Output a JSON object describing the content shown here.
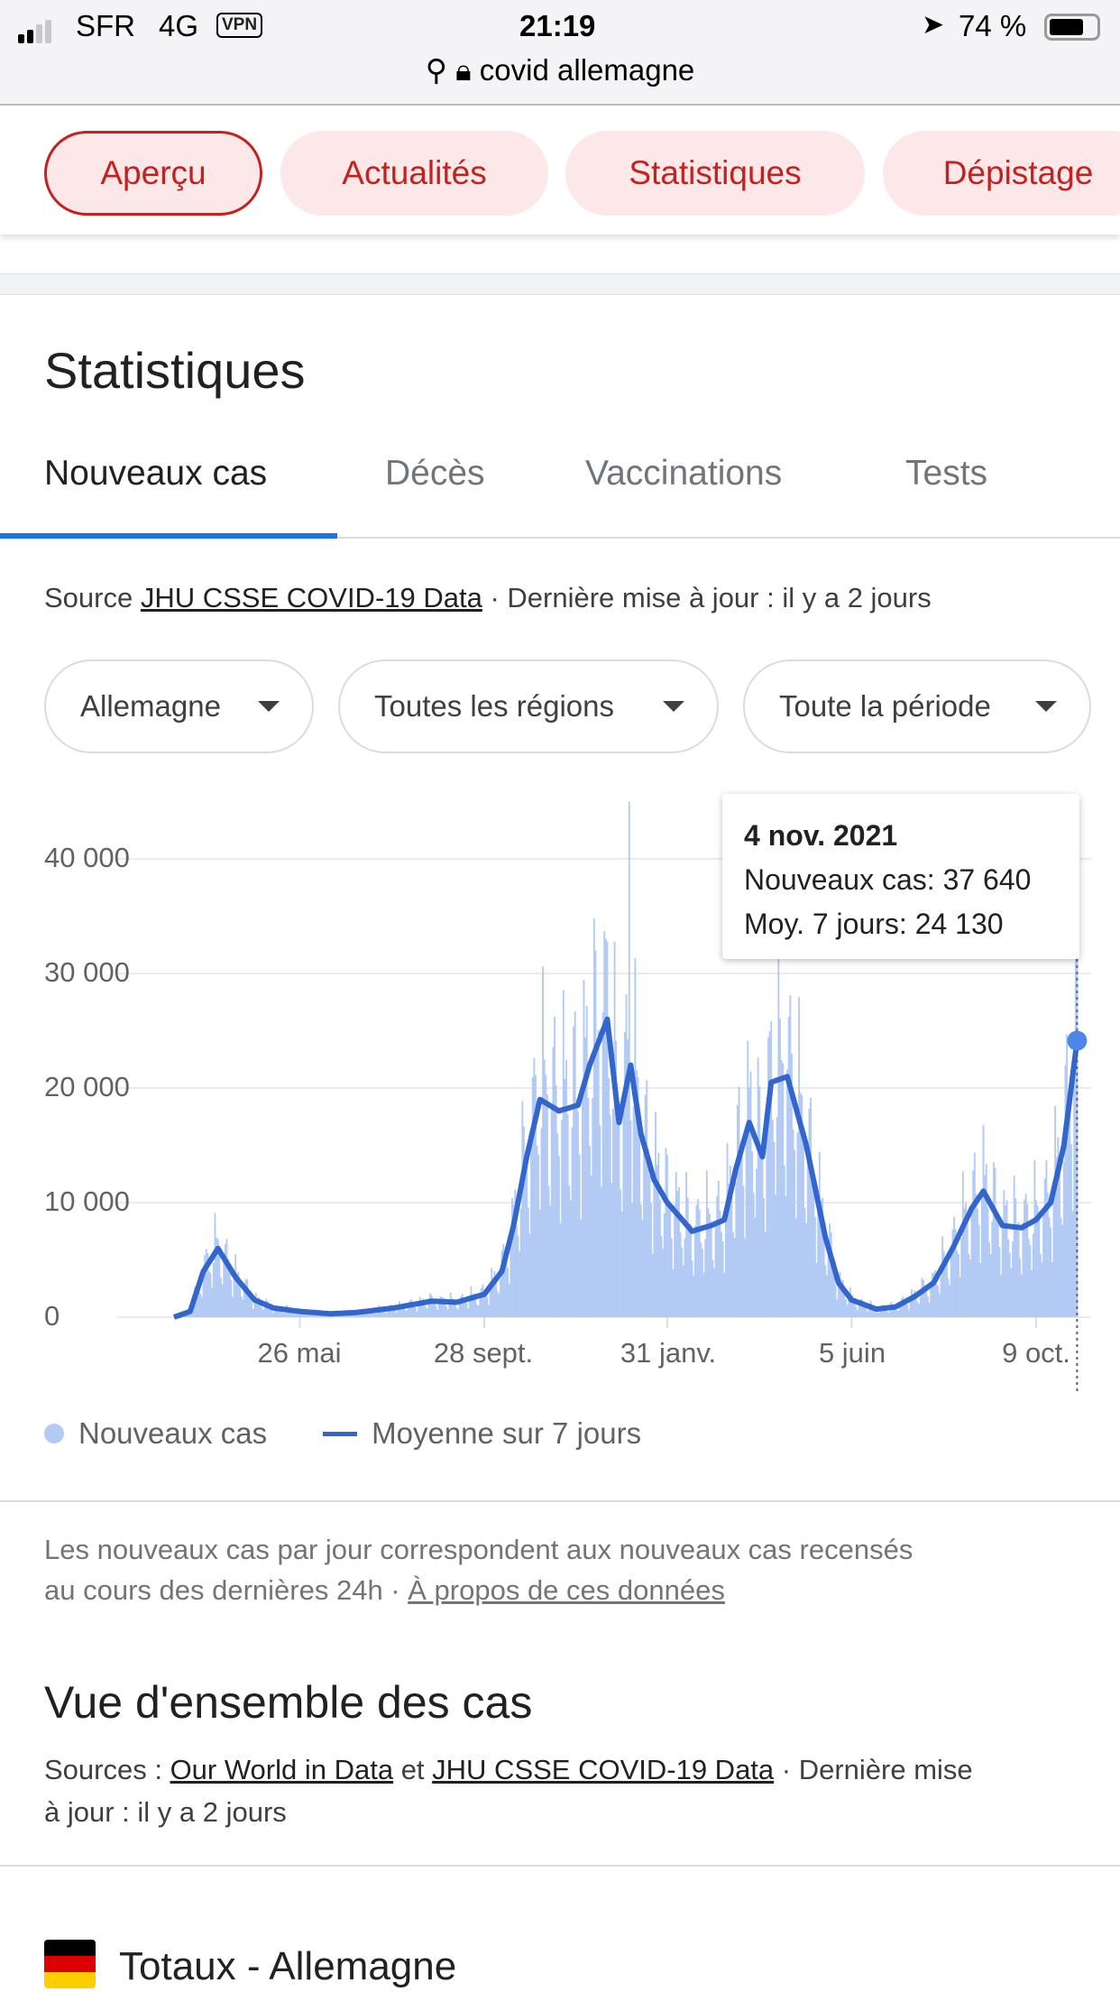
{
  "status": {
    "carrier": "SFR",
    "network": "4G",
    "vpn": "VPN",
    "time": "21:19",
    "battery": "74 %",
    "url": "covid allemagne"
  },
  "chips": [
    "Aperçu",
    "Actualités",
    "Statistiques",
    "Dépistage"
  ],
  "section_title": "Statistiques",
  "tabs": [
    "Nouveaux cas",
    "Décès",
    "Vaccinations",
    "Tests"
  ],
  "source": {
    "prefix": "Source ",
    "link": "JHU CSSE COVID-19 Data",
    "suffix": " · Dernière mise à jour : il y a 2 jours"
  },
  "dropdowns": [
    "Allemagne",
    "Toutes les régions",
    "Toute la période"
  ],
  "tooltip": {
    "date": "4 nov. 2021",
    "new_cases": "Nouveaux cas: 37 640",
    "avg": "Moy. 7 jours: 24 130"
  },
  "legend": {
    "bars": "Nouveaux cas",
    "line": "Moyenne sur 7 jours"
  },
  "footnote": {
    "line1": "Les nouveaux cas par jour correspondent aux nouveaux cas recensés",
    "line2": "au cours des dernières 24h",
    "sep": " · ",
    "link": "À propos de ces données"
  },
  "overview": {
    "title": "Vue d'ensemble des cas",
    "prefix": "Sources : ",
    "link1": "Our World in Data",
    "mid": " et ",
    "link2": "JHU CSSE COVID-19 Data",
    "suffix": " · Dernière mise",
    "line2": "à jour : il y a 2 jours"
  },
  "totals": {
    "title": "Totaux - Allemagne"
  },
  "colors": {
    "bars": "#b3cbf4",
    "line": "#3366cc",
    "accent": "#c5221f"
  },
  "chart_data": {
    "type": "bar+line",
    "x_unit": "days since 1 mars 2020",
    "ylim": [
      0,
      45000
    ],
    "yticks": [
      "0",
      "10 000",
      "20 000",
      "30 000",
      "40 000"
    ],
    "ytick_values": [
      0,
      10000,
      20000,
      30000,
      40000
    ],
    "xticks": [
      "26 mai",
      "28 sept.",
      "31 janv.",
      "5 juin",
      "9 oct."
    ],
    "xtick_days": [
      86,
      212,
      337,
      463,
      589
    ],
    "last_day": 617,
    "last_new_cases": 37640,
    "last_avg": 24130,
    "spike": {
      "day": 311,
      "value": 45000
    },
    "avg_series": [
      [
        0,
        0
      ],
      [
        11,
        500
      ],
      [
        20,
        4000
      ],
      [
        30,
        6000
      ],
      [
        42,
        3500
      ],
      [
        55,
        1500
      ],
      [
        68,
        800
      ],
      [
        86,
        500
      ],
      [
        107,
        300
      ],
      [
        124,
        400
      ],
      [
        150,
        800
      ],
      [
        176,
        1400
      ],
      [
        193,
        1300
      ],
      [
        212,
        2000
      ],
      [
        224,
        4000
      ],
      [
        232,
        8000
      ],
      [
        241,
        14000
      ],
      [
        250,
        19000
      ],
      [
        263,
        18000
      ],
      [
        276,
        18500
      ],
      [
        284,
        22000
      ],
      [
        296,
        26000
      ],
      [
        304,
        17000
      ],
      [
        312,
        22000
      ],
      [
        319,
        16000
      ],
      [
        328,
        12000
      ],
      [
        337,
        10000
      ],
      [
        354,
        7500
      ],
      [
        367,
        8000
      ],
      [
        376,
        8500
      ],
      [
        384,
        13000
      ],
      [
        393,
        17000
      ],
      [
        402,
        14000
      ],
      [
        408,
        20500
      ],
      [
        419,
        21000
      ],
      [
        432,
        15000
      ],
      [
        445,
        7000
      ],
      [
        454,
        3000
      ],
      [
        463,
        1500
      ],
      [
        480,
        700
      ],
      [
        493,
        900
      ],
      [
        506,
        1800
      ],
      [
        519,
        3000
      ],
      [
        532,
        6000
      ],
      [
        545,
        9500
      ],
      [
        553,
        11000
      ],
      [
        566,
        8000
      ],
      [
        579,
        7800
      ],
      [
        589,
        8500
      ],
      [
        599,
        10000
      ],
      [
        608,
        15000
      ],
      [
        617,
        24130
      ]
    ]
  }
}
